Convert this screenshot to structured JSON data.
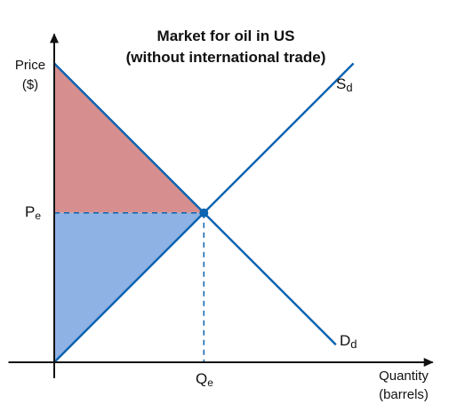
{
  "chart_data": {
    "type": "line",
    "title_line1": "Market for oil in US",
    "title_line2": "(without international trade)",
    "ylabel_line1": "Price",
    "ylabel_line2": "($)",
    "xlabel_line1": "Quantity",
    "xlabel_line2": "(barrels)",
    "equilibrium": {
      "price_label": "Pe",
      "price_main": "P",
      "price_sub": "e",
      "quantity_label": "Qe",
      "quantity_main": "Q",
      "quantity_sub": "e"
    },
    "series": [
      {
        "name": "Sd",
        "main": "S",
        "sub": "d",
        "kind": "supply",
        "x": [
          0,
          17
        ],
        "y": [
          0,
          17
        ]
      },
      {
        "name": "Dd",
        "main": "D",
        "sub": "d",
        "kind": "demand",
        "x": [
          0,
          16
        ],
        "y": [
          17,
          1
        ]
      }
    ],
    "equilibrium_point": {
      "x": 8.5,
      "y": 8.5
    },
    "regions": [
      {
        "name": "consumer-surplus",
        "color": "#d68f8e"
      },
      {
        "name": "producer-surplus",
        "color": "#8eb2e3"
      }
    ],
    "xlim": [
      0,
      21.5
    ],
    "ylim": [
      0,
      17
    ],
    "line_color": "#0d64b0",
    "axis_color": "#111111"
  }
}
